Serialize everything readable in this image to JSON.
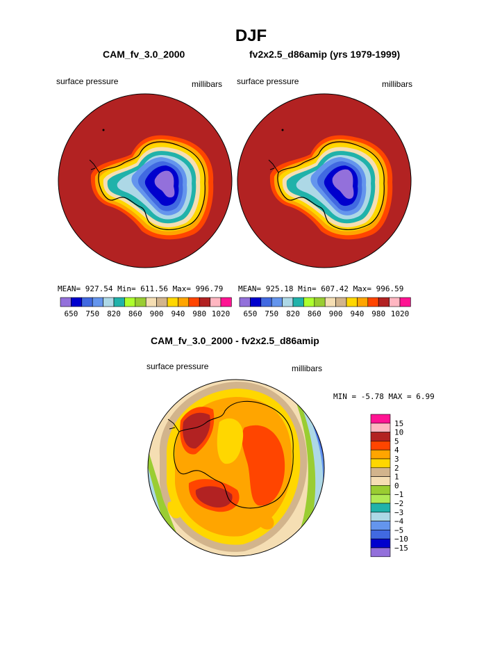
{
  "title": "DJF",
  "top_panels": [
    {
      "title": "CAM_fv_3.0_2000",
      "left_label": "surface pressure",
      "right_label": "millibars",
      "stats": "MEAN= 927.54  Min= 611.56  Max= 996.79"
    },
    {
      "title": "fv2x2.5_d86amip (yrs 1979-1999)",
      "left_label": "surface pressure",
      "right_label": "millibars",
      "stats": "MEAN= 925.18  Min= 607.42  Max= 996.59"
    }
  ],
  "top_colorbar": {
    "colors": [
      "#9370db",
      "#0000cd",
      "#4169e1",
      "#6495ed",
      "#add8e6",
      "#20b2aa",
      "#adff2f",
      "#9acd32",
      "#f5deb3",
      "#d2b48c",
      "#ffd700",
      "#ffa500",
      "#ff4500",
      "#b22222",
      "#ffb6c1",
      "#ff1493"
    ],
    "labels": [
      "650",
      "750",
      "820",
      "860",
      "900",
      "940",
      "980",
      "1020"
    ]
  },
  "diff_panel": {
    "title": "CAM_fv_3.0_2000 - fv2x2.5_d86amip",
    "left_label": "surface pressure",
    "right_label": "millibars",
    "stats": "MIN =   -5.78 MAX =    6.99"
  },
  "diff_colorbar": {
    "colors": [
      "#ff1493",
      "#ffb6c1",
      "#b22222",
      "#ff4500",
      "#ffa500",
      "#ffd700",
      "#d2b48c",
      "#f5deb3",
      "#9acd32",
      "#b0ea55",
      "#20b2aa",
      "#add8e6",
      "#6495ed",
      "#4169e1",
      "#0000cd",
      "#9370db"
    ],
    "labels": [
      "15",
      "10",
      "5",
      "4",
      "3",
      "2",
      "1",
      "0",
      "−1",
      "−2",
      "−3",
      "−4",
      "−5",
      "−10",
      "−15"
    ]
  },
  "colors": {
    "ocean": "#b22222",
    "outline": "#000000"
  }
}
